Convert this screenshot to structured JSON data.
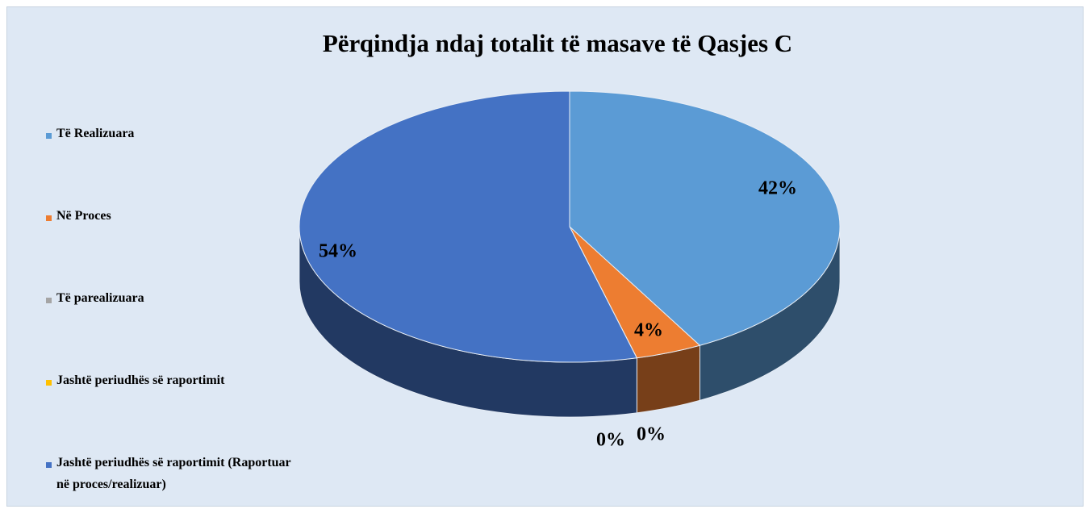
{
  "chart_data": {
    "type": "pie",
    "title": "Përqindja ndaj totalit të masave të Qasjes C",
    "categories": [
      "Të Realizuara",
      "Në Proces",
      "Të parealizuara",
      "Jashtë periudhës së raportimit",
      "Jashtë periudhës së raportimit (Raportuar në proces/realizuar)"
    ],
    "values": [
      42,
      4,
      0,
      0,
      54
    ],
    "value_labels": [
      "42%",
      "4%",
      "0%",
      "0%",
      "54%"
    ],
    "colors": [
      "#5b9bd5",
      "#ed7d31",
      "#a5a5a5",
      "#ffc000",
      "#4472c4"
    ],
    "legend": "left"
  }
}
